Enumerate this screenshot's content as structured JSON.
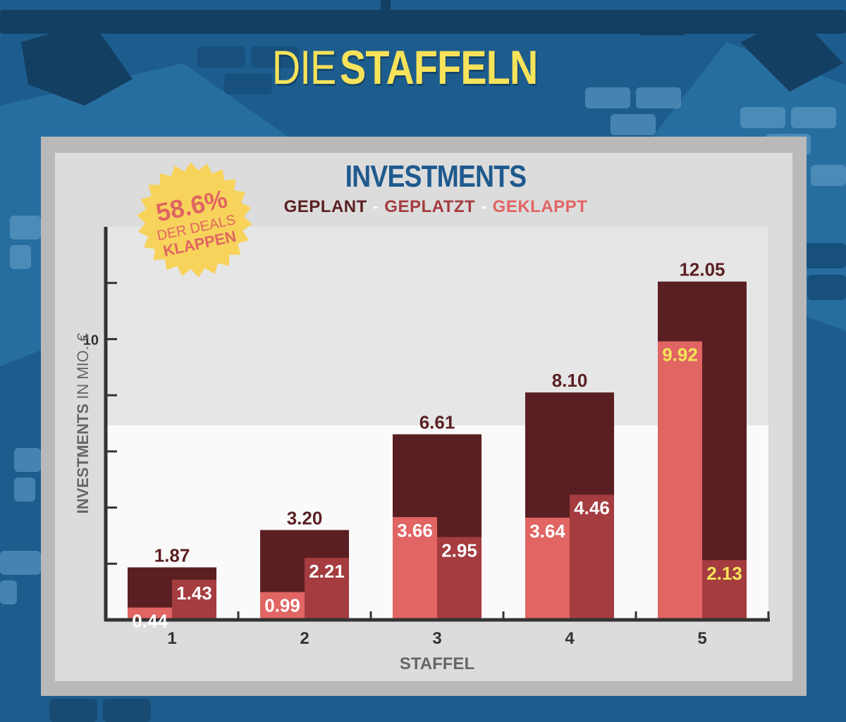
{
  "page": {
    "title_part1": "DIE",
    "title_part2": "STAFFELN"
  },
  "badge": {
    "percent": "58.6%",
    "line2": "DER DEALS",
    "line3": "KLAPPEN"
  },
  "colors": {
    "geplant": "#5a1f22",
    "geplatzt": "#a43c40",
    "geklappt": "#e06563",
    "title_blue": "#1f5a8e",
    "highlight_yellow": "#f6e35a"
  },
  "chart_data": {
    "type": "bar",
    "title": "INVESTMENTS",
    "legend": [
      "GEPLANT",
      "GEPLATZT",
      "GEKLAPPT"
    ],
    "legend_placement": "top-center",
    "xlabel": "STAFFEL",
    "ylabel": "INVESTMENTS IN MIO. €",
    "categories": [
      "1",
      "2",
      "3",
      "4",
      "5"
    ],
    "ylim": [
      0,
      14
    ],
    "ytick_labels": [
      {
        "value": 10,
        "label": "10"
      }
    ],
    "series": [
      {
        "name": "GEPLANT",
        "values": [
          1.87,
          3.2,
          6.61,
          8.1,
          12.05
        ],
        "labels": [
          "1.87",
          "3.20",
          "6.61",
          "8.10",
          "12.05"
        ]
      },
      {
        "name": "GEKLAPPT",
        "values": [
          0.44,
          0.99,
          3.66,
          3.64,
          9.92
        ],
        "labels": [
          "0.44",
          "0.99",
          "3.66",
          "3.64",
          "9.92"
        ]
      },
      {
        "name": "GEPLATZT",
        "values": [
          1.43,
          2.21,
          2.95,
          4.46,
          2.13
        ],
        "labels": [
          "1.43",
          "2.21",
          "2.95",
          "4.46",
          "2.13"
        ]
      }
    ]
  }
}
